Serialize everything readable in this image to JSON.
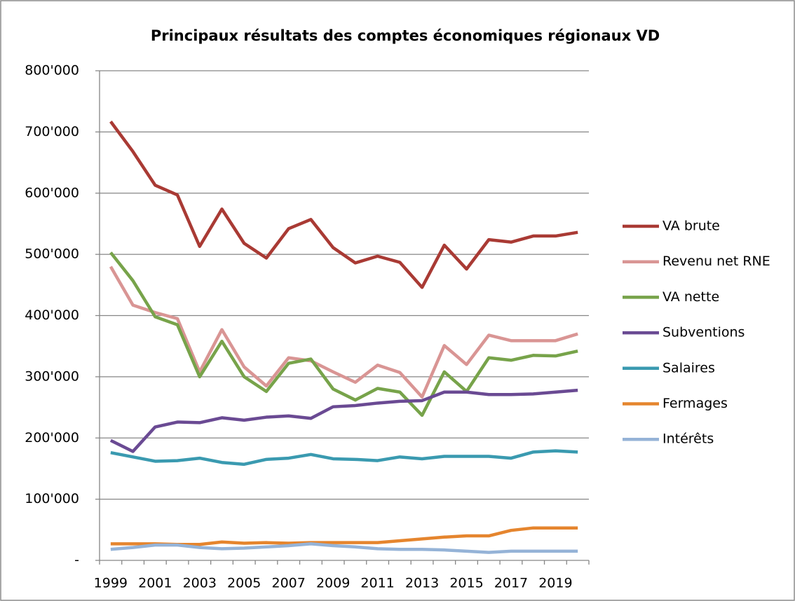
{
  "chart_data": {
    "type": "line",
    "title": "Principaux résultats des comptes économiques régionaux VD",
    "categories": [
      "1999",
      null,
      "2001",
      null,
      "2003",
      null,
      "2005",
      null,
      "2007",
      null,
      "2009",
      null,
      "2011",
      null,
      "2013",
      null,
      "2015",
      null,
      "2017",
      null,
      "2019",
      null
    ],
    "ylim": [
      0,
      800000
    ],
    "yticks": [
      {
        "value": 0,
        "label": "-"
      },
      {
        "value": 100000,
        "label": "100'000"
      },
      {
        "value": 200000,
        "label": "200'000"
      },
      {
        "value": 300000,
        "label": "300'000"
      },
      {
        "value": 400000,
        "label": "400'000"
      },
      {
        "value": 500000,
        "label": "500'000"
      },
      {
        "value": 600000,
        "label": "600'000"
      },
      {
        "value": 700000,
        "label": "700'000"
      },
      {
        "value": 800000,
        "label": "800'000"
      }
    ],
    "grid": true,
    "legend": "right",
    "series": [
      {
        "name": "VA brute",
        "color": "#a93a34",
        "values": [
          717000,
          668000,
          613000,
          597000,
          513000,
          574000,
          518000,
          494000,
          542000,
          557000,
          511000,
          486000,
          497000,
          487000,
          446000,
          515000,
          476000,
          524000,
          520000,
          530000,
          530000,
          536000
        ]
      },
      {
        "name": "Revenu net RNE",
        "color": "#d99594",
        "values": [
          480000,
          417000,
          405000,
          395000,
          308000,
          377000,
          316000,
          285000,
          331000,
          326000,
          308000,
          291000,
          319000,
          307000,
          267000,
          351000,
          320000,
          368000,
          359000,
          359000,
          359000,
          370000
        ]
      },
      {
        "name": "VA nette",
        "color": "#77a34a",
        "values": [
          503000,
          457000,
          398000,
          385000,
          300000,
          358000,
          300000,
          276000,
          322000,
          329000,
          280000,
          262000,
          281000,
          275000,
          237000,
          308000,
          276000,
          331000,
          327000,
          335000,
          334000,
          342000
        ]
      },
      {
        "name": "Subventions",
        "color": "#6a4a93",
        "values": [
          196000,
          178000,
          218000,
          226000,
          225000,
          233000,
          229000,
          234000,
          236000,
          232000,
          251000,
          253000,
          257000,
          260000,
          261000,
          275000,
          275000,
          271000,
          271000,
          272000,
          275000,
          278000
        ]
      },
      {
        "name": "Salaires",
        "color": "#3a9ab0",
        "values": [
          176000,
          169000,
          162000,
          163000,
          167000,
          160000,
          157000,
          165000,
          167000,
          173000,
          166000,
          165000,
          163000,
          169000,
          166000,
          170000,
          170000,
          170000,
          167000,
          177000,
          179000,
          177000
        ]
      },
      {
        "name": "Fermages",
        "color": "#e5852e",
        "values": [
          27000,
          27000,
          27000,
          26000,
          26000,
          30000,
          28000,
          29000,
          28000,
          29000,
          29000,
          29000,
          29000,
          32000,
          35000,
          38000,
          40000,
          40000,
          49000,
          53000,
          53000,
          53000
        ]
      },
      {
        "name": "Intérêts",
        "color": "#95b3d7",
        "values": [
          18000,
          21000,
          25000,
          25000,
          21000,
          19000,
          20000,
          22000,
          24000,
          27000,
          24000,
          22000,
          19000,
          18000,
          18000,
          17000,
          15000,
          13000,
          15000,
          15000,
          15000,
          15000
        ]
      }
    ]
  }
}
